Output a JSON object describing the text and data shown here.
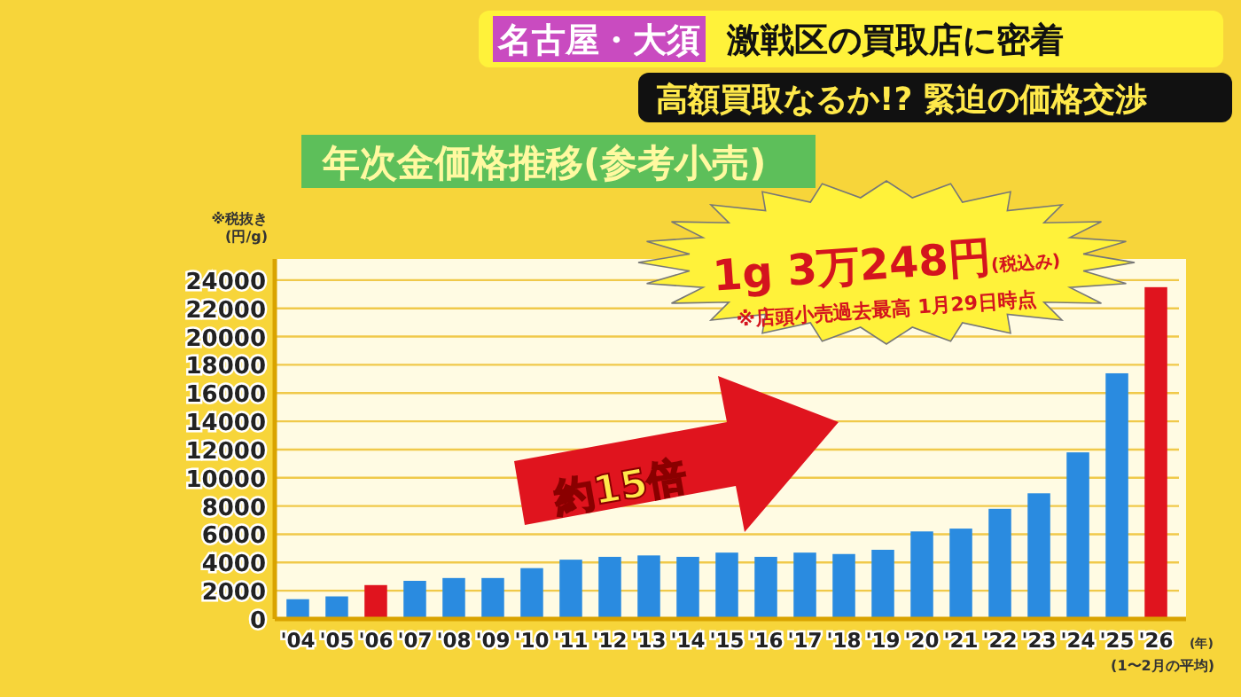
{
  "chart_data": {
    "type": "bar",
    "title": "年次金価格推移(参考小売)",
    "ylabel": "※税抜き (円/g)",
    "xlabel": "(年)",
    "categories": [
      "'04",
      "'05",
      "'06",
      "'07",
      "'08",
      "'09",
      "'10",
      "'11",
      "'12",
      "'13",
      "'14",
      "'15",
      "'16",
      "'17",
      "'18",
      "'19",
      "'20",
      "'21",
      "'22",
      "'23",
      "'24",
      "'25",
      "'26"
    ],
    "values": [
      1400,
      1600,
      2400,
      2700,
      2900,
      2900,
      3600,
      4200,
      4400,
      4500,
      4400,
      4700,
      4400,
      4700,
      4600,
      4900,
      6200,
      6400,
      7800,
      8900,
      11800,
      17400,
      23500
    ],
    "colors": [
      "#2a8be0",
      "#2a8be0",
      "#e0141e",
      "#2a8be0",
      "#2a8be0",
      "#2a8be0",
      "#2a8be0",
      "#2a8be0",
      "#2a8be0",
      "#2a8be0",
      "#2a8be0",
      "#2a8be0",
      "#2a8be0",
      "#2a8be0",
      "#2a8be0",
      "#2a8be0",
      "#2a8be0",
      "#2a8be0",
      "#2a8be0",
      "#2a8be0",
      "#2a8be0",
      "#2a8be0",
      "#e0141e"
    ],
    "ylim": [
      0,
      25500
    ],
    "yticks": [
      0,
      2000,
      4000,
      6000,
      8000,
      10000,
      12000,
      14000,
      16000,
      18000,
      20000,
      22000,
      24000
    ],
    "grid": "y",
    "annotations": [
      "名古屋・大須",
      "激戦区の買取店に密着",
      "高額買取なるか!? 緊迫の価格交渉",
      "1g 3万248円(税込み)",
      "※店頭小売過去最高 1月29日時点",
      "約15倍",
      "(1〜2月の平均)"
    ]
  }
}
